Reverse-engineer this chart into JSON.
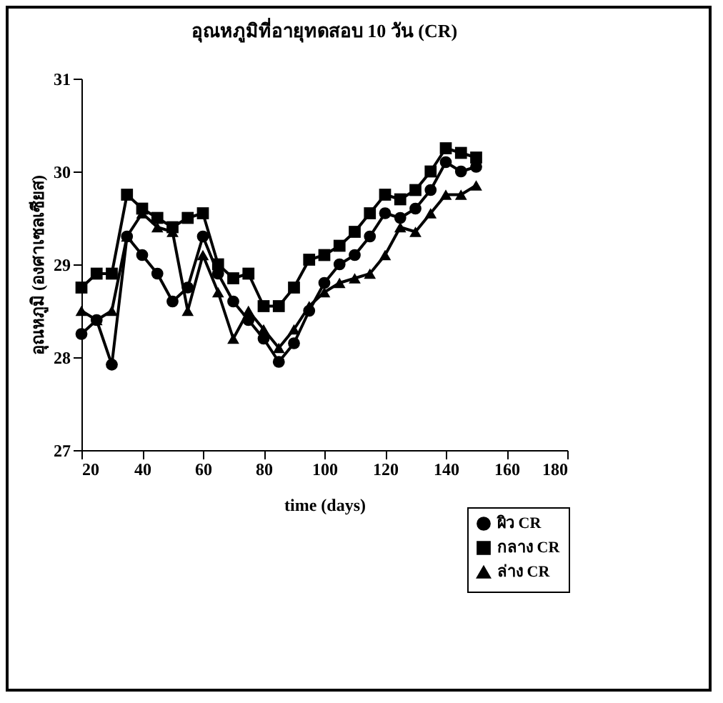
{
  "chart_data": {
    "type": "line",
    "title": "อุณหภูมิที่อายุทดสอบ 10 วัน (CR)",
    "xlabel": "time (days)",
    "ylabel": "อุณหภูมิ (องศาเซลเซียส)",
    "x": [
      20,
      25,
      30,
      35,
      40,
      45,
      50,
      55,
      60,
      65,
      70,
      75,
      80,
      85,
      90,
      95,
      100,
      105,
      110,
      115,
      120,
      125,
      130,
      135,
      140,
      145,
      150
    ],
    "series": [
      {
        "name": "ผิว CR",
        "color": "#000000",
        "marker": "circle",
        "values": [
          28.25,
          28.4,
          27.92,
          29.3,
          29.1,
          28.9,
          28.6,
          28.75,
          29.3,
          28.9,
          28.6,
          28.4,
          28.2,
          27.95,
          28.15,
          28.5,
          28.8,
          29.0,
          29.1,
          29.3,
          29.55,
          29.5,
          29.6,
          29.8,
          30.1,
          30.0,
          30.05
        ]
      },
      {
        "name": "กลาง CR",
        "color": "#000000",
        "marker": "square",
        "values": [
          28.75,
          28.9,
          28.9,
          29.75,
          29.6,
          29.5,
          29.4,
          29.5,
          29.55,
          29.0,
          28.85,
          28.9,
          28.55,
          28.55,
          28.75,
          29.05,
          29.1,
          29.2,
          29.35,
          29.55,
          29.75,
          29.7,
          29.8,
          30.0,
          30.25,
          30.2,
          30.15
        ]
      },
      {
        "name": "ล่าง CR",
        "color": "#000000",
        "marker": "triangle",
        "values": [
          28.5,
          28.4,
          28.5,
          29.3,
          29.55,
          29.4,
          29.35,
          28.5,
          29.1,
          28.7,
          28.2,
          28.5,
          28.3,
          28.1,
          28.3,
          28.55,
          28.7,
          28.8,
          28.85,
          28.9,
          29.1,
          29.4,
          29.35,
          29.55,
          29.75,
          29.75,
          29.85
        ]
      }
    ],
    "xlim": [
      20,
      180
    ],
    "xticks": [
      20,
      40,
      60,
      80,
      100,
      120,
      140,
      160,
      180
    ],
    "ylim": [
      27,
      31
    ],
    "yticks": [
      27,
      28,
      29,
      30,
      31
    ],
    "grid": false,
    "legend": "bottom right",
    "line_style": "solid"
  }
}
